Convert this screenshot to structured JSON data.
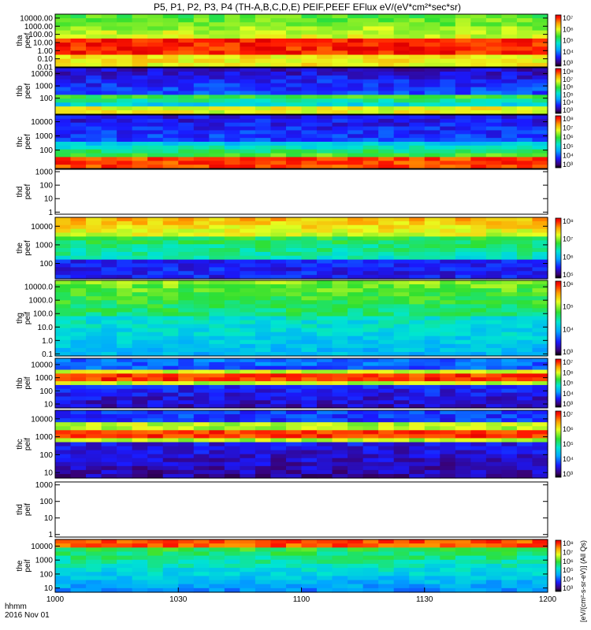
{
  "title": "P5, P1, P2, P3, P4 (TH-A,B,C,D,E) PEIF,PEEF EFlux eV/(eV*cm²*sec*sr)",
  "footer": {
    "time_unit": "hhmm",
    "date": "2016 Nov 01"
  },
  "right_label": "[eV/(cm²-s-sr-eV)] (All Qs)",
  "colors": {
    "line": "#000000",
    "background": "#ffffff"
  },
  "chart_data": {
    "type": "heatmap",
    "x_ticks": [
      "1000",
      "1030",
      "1100",
      "1130",
      "1200"
    ],
    "xlim": [
      "10:00",
      "12:00"
    ],
    "panels": [
      {
        "id": "tha-peef",
        "ylabel": [
          "tha",
          "peef"
        ],
        "yticks": [
          "10000.00",
          "1000.00",
          "100.00",
          "10.00",
          "1.00",
          "0.10",
          "0.01"
        ],
        "cbar_ticks": [
          "10⁷",
          "10⁶",
          "10⁵",
          "10⁴",
          "10³"
        ],
        "log_range": [
          0.01,
          30000
        ]
      },
      {
        "id": "thb-peef",
        "ylabel": [
          "thb",
          "peef"
        ],
        "yticks": [
          "10000",
          "1000",
          "100"
        ],
        "cbar_ticks": [
          "10⁸",
          "10⁷",
          "10⁶",
          "10⁵",
          "10⁴",
          "10³"
        ],
        "log_range": [
          5,
          30000
        ]
      },
      {
        "id": "thc-peef",
        "ylabel": [
          "thc",
          "peef"
        ],
        "yticks": [
          "10000",
          "1000",
          "100"
        ],
        "cbar_ticks": [
          "10⁸",
          "10⁷",
          "10⁶",
          "10⁵",
          "10⁴",
          "10³"
        ],
        "log_range": [
          5,
          30000
        ]
      },
      {
        "id": "thd-peef",
        "ylabel": [
          "thd",
          "peef"
        ],
        "yticks": [
          "1000",
          "100",
          "10",
          "1"
        ],
        "cbar_ticks": [],
        "log_range": [
          0.7,
          1500
        ]
      },
      {
        "id": "the-peef",
        "ylabel": [
          "the",
          "peef"
        ],
        "yticks": [
          "10000",
          "1000",
          "100"
        ],
        "cbar_ticks": [
          "10⁸",
          "10⁷",
          "10⁶",
          "10⁵"
        ],
        "log_range": [
          15,
          30000
        ]
      },
      {
        "id": "thg-peif",
        "ylabel": [
          "thg",
          "peif"
        ],
        "yticks": [
          "10000.0",
          "1000.0",
          "100.0",
          "10.0",
          "1.0",
          "0.1"
        ],
        "cbar_ticks": [
          "10⁶",
          "10⁵",
          "10⁴",
          "10³"
        ],
        "log_range": [
          0.07,
          30000
        ]
      },
      {
        "id": "thb-peif",
        "ylabel": [
          "thb",
          "peif"
        ],
        "yticks": [
          "10000",
          "1000",
          "100",
          "10"
        ],
        "cbar_ticks": [
          "10⁷",
          "10⁶",
          "10⁵",
          "10⁴",
          "10³"
        ],
        "log_range": [
          5,
          30000
        ]
      },
      {
        "id": "thc-peif",
        "ylabel": [
          "thc",
          "peif"
        ],
        "yticks": [
          "10000",
          "1000",
          "100",
          "10"
        ],
        "cbar_ticks": [
          "10⁷",
          "10⁶",
          "10⁵",
          "10⁴",
          "10³"
        ],
        "log_range": [
          5,
          30000
        ]
      },
      {
        "id": "thd-peif",
        "ylabel": [
          "thd",
          "peif"
        ],
        "yticks": [
          "1000",
          "100",
          "10",
          "1"
        ],
        "cbar_ticks": [],
        "log_range": [
          0.7,
          1500
        ]
      },
      {
        "id": "the-peif",
        "ylabel": [
          "the",
          "peif"
        ],
        "yticks": [
          "10000",
          "1000",
          "100",
          "10"
        ],
        "cbar_ticks": [
          "10⁸",
          "10⁷",
          "10⁶",
          "10⁵",
          "10⁴",
          "10³"
        ],
        "log_range": [
          5,
          30000
        ]
      }
    ]
  }
}
